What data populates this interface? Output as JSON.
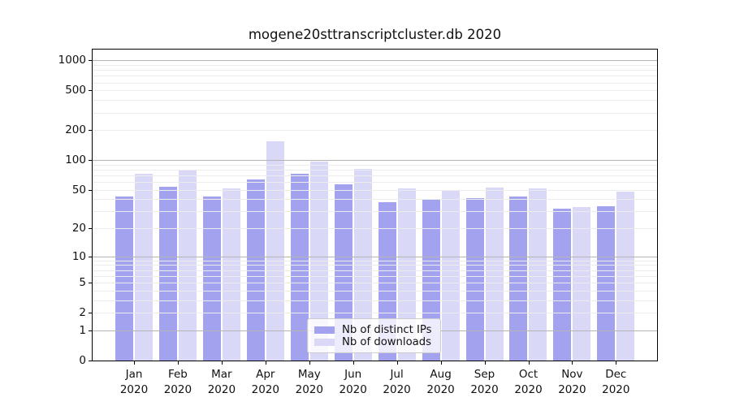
{
  "window": {
    "background": "#ffffff"
  },
  "chart_data": {
    "type": "bar",
    "title": "mogene20sttranscriptcluster.db 2020",
    "year_label": "2020",
    "categories": [
      "Jan",
      "Feb",
      "Mar",
      "Apr",
      "May",
      "Jun",
      "Jul",
      "Aug",
      "Sep",
      "Oct",
      "Nov",
      "Dec"
    ],
    "series": [
      {
        "name": "Nb of distinct IPs",
        "color": "#a2a2ee",
        "values": [
          43,
          54,
          43,
          63,
          73,
          57,
          37,
          40,
          41,
          43,
          32,
          34
        ]
      },
      {
        "name": "Nb of downloads",
        "color": "#d9d9f7",
        "values": [
          73,
          80,
          52,
          155,
          96,
          81,
          52,
          50,
          53,
          52,
          33,
          48
        ]
      }
    ],
    "xlabel": "",
    "ylabel": "",
    "yscale": "log10(1+value)",
    "ylim": [
      0,
      1285
    ],
    "ytick_values": [
      0,
      1,
      2,
      5,
      10,
      20,
      50,
      100,
      200,
      500,
      1000
    ],
    "ytick_labels": [
      "0",
      "1",
      "2",
      "5",
      "10",
      "20",
      "50",
      "100",
      "200",
      "500",
      "1000"
    ],
    "major_gridline_values": [
      1,
      10,
      100,
      1000
    ],
    "minor_gridline_values": [
      2,
      3,
      4,
      5,
      6,
      7,
      8,
      9,
      20,
      30,
      40,
      50,
      60,
      70,
      80,
      90,
      200,
      300,
      400,
      500,
      600,
      700,
      800,
      900
    ],
    "grid": true,
    "legend_position": "inside lower-center",
    "colors": {
      "distinct_ips": "#a2a2ee",
      "downloads": "#d9d9f7",
      "major_grid": "#b4b4b4",
      "minor_grid": "#ececec",
      "spine": "#000000",
      "text": "#111111"
    }
  }
}
